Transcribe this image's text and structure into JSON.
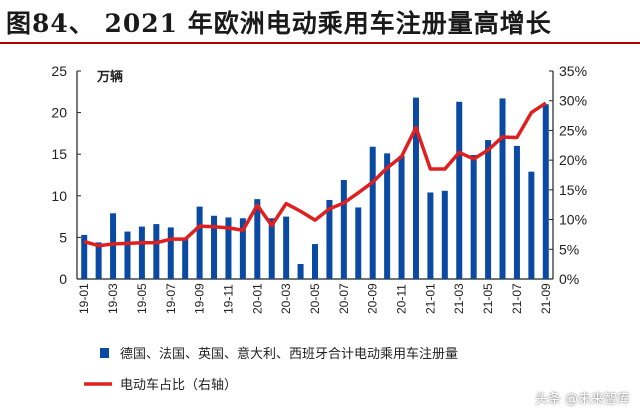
{
  "title": "图84、 2021 年欧洲电动乘用车注册量高增长",
  "watermark": "头条 @未来智库",
  "chart_data": {
    "type": "bar+line",
    "title": "图84、 2021 年欧洲电动乘用车注册量高增长",
    "ylabel": "万辆",
    "ylim": [
      0,
      25
    ],
    "yticks": [
      "0",
      "5",
      "10",
      "15",
      "20",
      "25"
    ],
    "y2lim": [
      0,
      35
    ],
    "y2ticks": [
      "0%",
      "5%",
      "10%",
      "15%",
      "20%",
      "25%",
      "30%",
      "35%"
    ],
    "categories": [
      "19-01",
      "19-02",
      "19-03",
      "19-04",
      "19-05",
      "19-06",
      "19-07",
      "19-08",
      "19-09",
      "19-10",
      "19-11",
      "19-12",
      "20-01",
      "20-02",
      "20-03",
      "20-04",
      "20-05",
      "20-06",
      "20-07",
      "20-08",
      "20-09",
      "20-10",
      "20-11",
      "20-12",
      "21-01",
      "21-02",
      "21-03",
      "21-04",
      "21-05",
      "21-06",
      "21-07",
      "21-08",
      "21-09"
    ],
    "xtick_labels": [
      "19-01",
      "19-03",
      "19-05",
      "19-07",
      "19-09",
      "19-11",
      "20-01",
      "20-03",
      "20-05",
      "20-07",
      "20-09",
      "20-11",
      "21-01",
      "21-03",
      "21-05",
      "21-07",
      "21-09"
    ],
    "grid": false,
    "legend_placement": "bottom",
    "series": [
      {
        "name": "德国、法国、英国、意大利、西班牙合计电动乘用车注册量",
        "type": "bar",
        "axis": "left",
        "color": "#0b4aa2",
        "values": [
          5.3,
          4.4,
          7.9,
          5.7,
          6.3,
          6.6,
          6.2,
          4.8,
          8.7,
          7.6,
          7.4,
          7.3,
          9.6,
          7.3,
          7.5,
          1.8,
          4.2,
          9.5,
          11.9,
          8.6,
          15.9,
          15.1,
          14.8,
          21.8,
          10.4,
          10.6,
          21.3,
          14.9,
          16.7,
          21.7,
          16.0,
          12.9,
          21.0
        ]
      },
      {
        "name": "电动车占比（右轴）",
        "type": "line",
        "axis": "right",
        "color": "#e0201e",
        "values": [
          6.3,
          5.6,
          5.9,
          6.0,
          6.1,
          6.1,
          6.7,
          6.7,
          8.9,
          8.8,
          8.6,
          8.2,
          12.4,
          9.0,
          12.7,
          11.4,
          9.9,
          11.8,
          12.8,
          14.5,
          16.3,
          18.7,
          20.6,
          25.5,
          18.5,
          18.5,
          21.3,
          20.2,
          21.7,
          23.9,
          23.8,
          28.0,
          29.6
        ]
      }
    ]
  }
}
